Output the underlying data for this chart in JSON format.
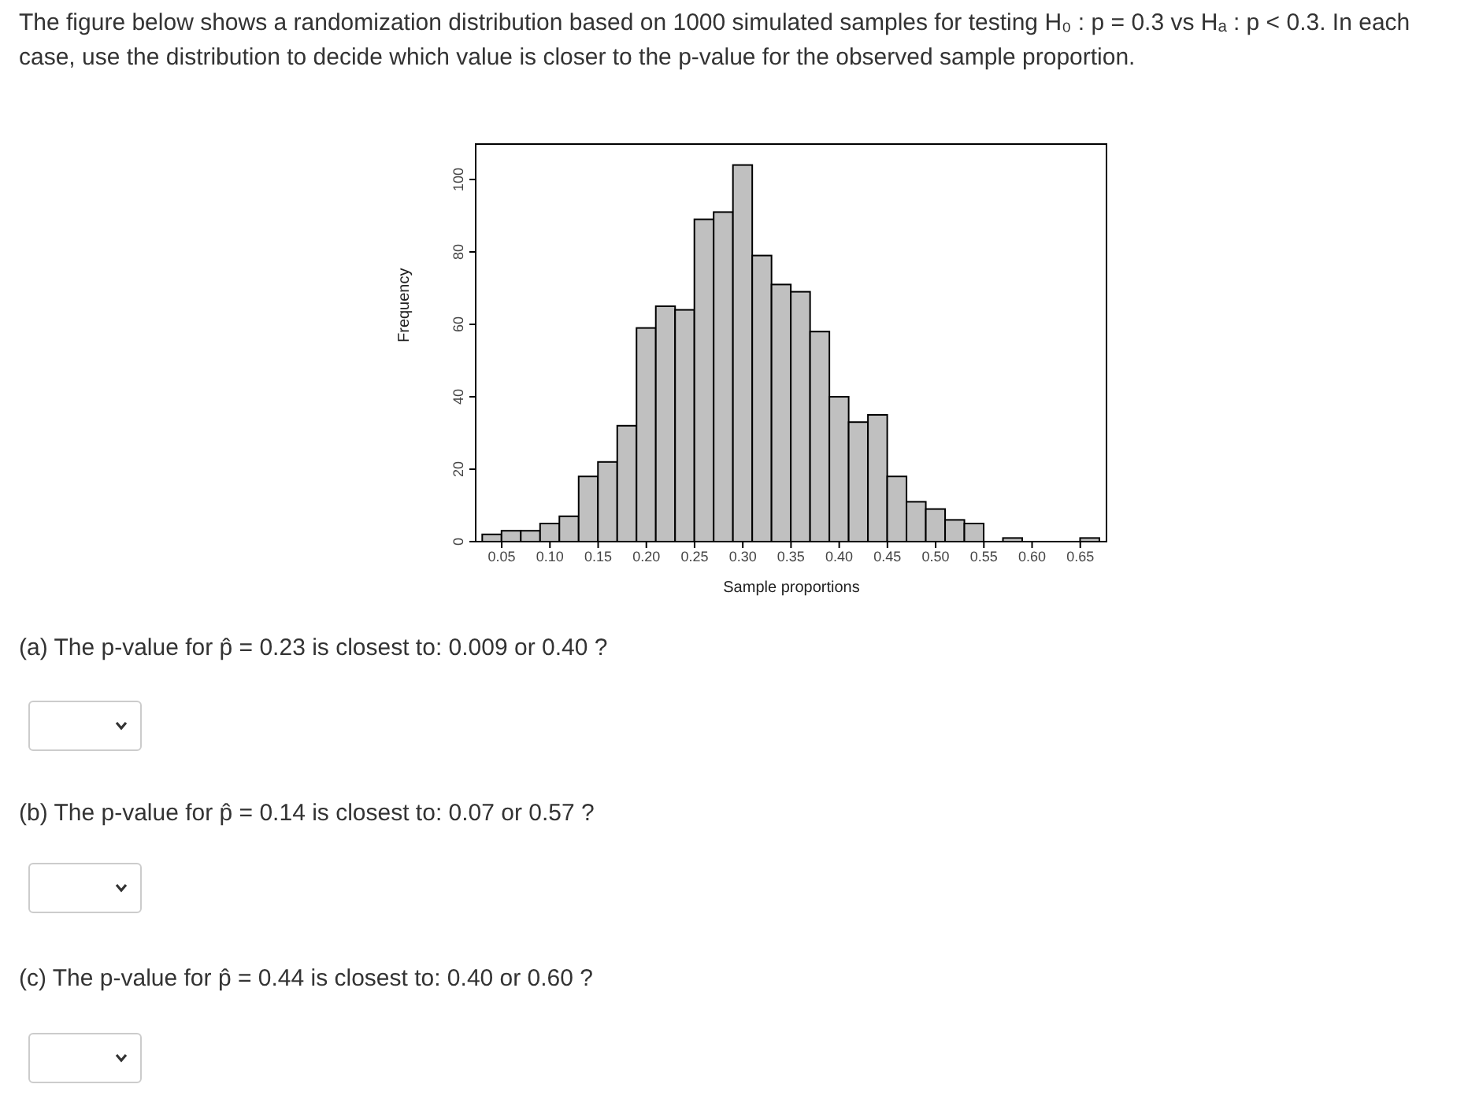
{
  "chart_data": {
    "type": "histogram",
    "title": "The figure below shows a randomization distribution based on 1000 simulated samples for testing H₀ : p = 0.3 vs Hₐ : p < 0.3. In each case, use the distribution to decide which value is closer to the p-value for the observed sample proportion.",
    "xlabel": "Sample proportions",
    "ylabel": "Frequency",
    "bins": [
      0.03,
      0.05,
      0.07,
      0.09,
      0.11,
      0.13,
      0.15,
      0.17,
      0.19,
      0.21,
      0.23,
      0.25,
      0.27,
      0.29,
      0.31,
      0.33,
      0.35,
      0.37,
      0.39,
      0.41,
      0.43,
      0.45,
      0.47,
      0.49,
      0.51,
      0.53,
      0.55,
      0.57,
      0.59,
      0.61,
      0.63,
      0.65,
      0.67
    ],
    "values": [
      2,
      3,
      3,
      5,
      7,
      18,
      22,
      32,
      59,
      65,
      64,
      89,
      91,
      104,
      79,
      71,
      69,
      58,
      40,
      33,
      35,
      18,
      11,
      9,
      6,
      5,
      0,
      1,
      0,
      0,
      0,
      1
    ],
    "color": "#c0c0c0",
    "xlim": [
      0.023,
      0.678
    ],
    "ylim": [
      0,
      110
    ],
    "xticks": [
      {
        "value": 0.05,
        "label": "0.05"
      },
      {
        "value": 0.1,
        "label": "0.10"
      },
      {
        "value": 0.15,
        "label": "0.15"
      },
      {
        "value": 0.2,
        "label": "0.20"
      },
      {
        "value": 0.25,
        "label": "0.25"
      },
      {
        "value": 0.3,
        "label": "0.30"
      },
      {
        "value": 0.35,
        "label": "0.35"
      },
      {
        "value": 0.4,
        "label": "0.40"
      },
      {
        "value": 0.45,
        "label": "0.45"
      },
      {
        "value": 0.5,
        "label": "0.50"
      },
      {
        "value": 0.55,
        "label": "0.55"
      },
      {
        "value": 0.6,
        "label": "0.60"
      },
      {
        "value": 0.65,
        "label": "0.65"
      }
    ],
    "yticks": [
      0,
      20,
      40,
      60,
      80,
      100
    ],
    "grid": false,
    "legend": false,
    "annotations": [
      "(a) The p-value for p̂ = 0.23 is closest to: 0.009 or 0.40 ?",
      "(b) The p-value for p̂ = 0.14 is closest to: 0.07 or 0.57 ?",
      "(c) The p-value for p̂ = 0.44 is closest to: 0.40 or 0.60 ?"
    ]
  }
}
